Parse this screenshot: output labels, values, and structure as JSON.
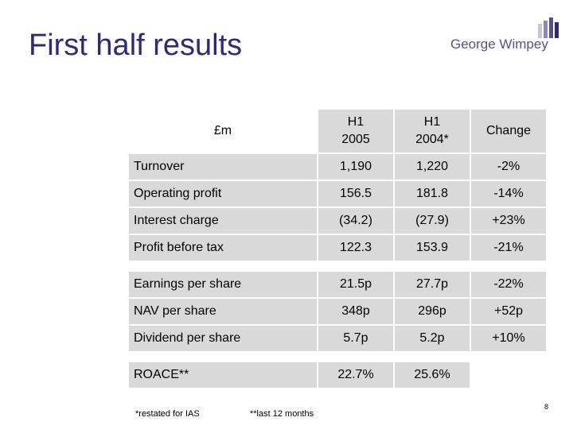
{
  "title": "First half results",
  "logo": {
    "text": "George Wimpey",
    "bar_colors": [
      "#c9c4dc",
      "#8f85b8",
      "#5a4f8a",
      "#2e2a7a"
    ]
  },
  "table": {
    "unit_label": "£m",
    "columns": [
      "H1\n2005",
      "H1\n2004*",
      "Change"
    ],
    "rows": [
      {
        "label": "Turnover",
        "h1_2005": "1,190",
        "h1_2004": "1,220",
        "change": "-2%"
      },
      {
        "label": "Operating profit",
        "h1_2005": "156.5",
        "h1_2004": "181.8",
        "change": "-14%"
      },
      {
        "label": "Interest charge",
        "h1_2005": "(34.2)",
        "h1_2004": "(27.9)",
        "change": "+23%"
      },
      {
        "label": "Profit before tax",
        "h1_2005": "122.3",
        "h1_2004": "153.9",
        "change": "-21%"
      },
      {
        "label": "Earnings per share",
        "h1_2005": "21.5p",
        "h1_2004": "27.7p",
        "change": "-22%"
      },
      {
        "label": "NAV per share",
        "h1_2005": "348p",
        "h1_2004": "296p",
        "change": "+52p"
      },
      {
        "label": "Dividend per share",
        "h1_2005": "5.7p",
        "h1_2004": "5.2p",
        "change": "+10%"
      },
      {
        "label": "ROACE**",
        "h1_2005": "22.7%",
        "h1_2004": "25.6%",
        "change": ""
      }
    ]
  },
  "footnotes": {
    "restated": "*restated for IAS",
    "last12": "**last 12 months"
  },
  "page_number": "8"
}
